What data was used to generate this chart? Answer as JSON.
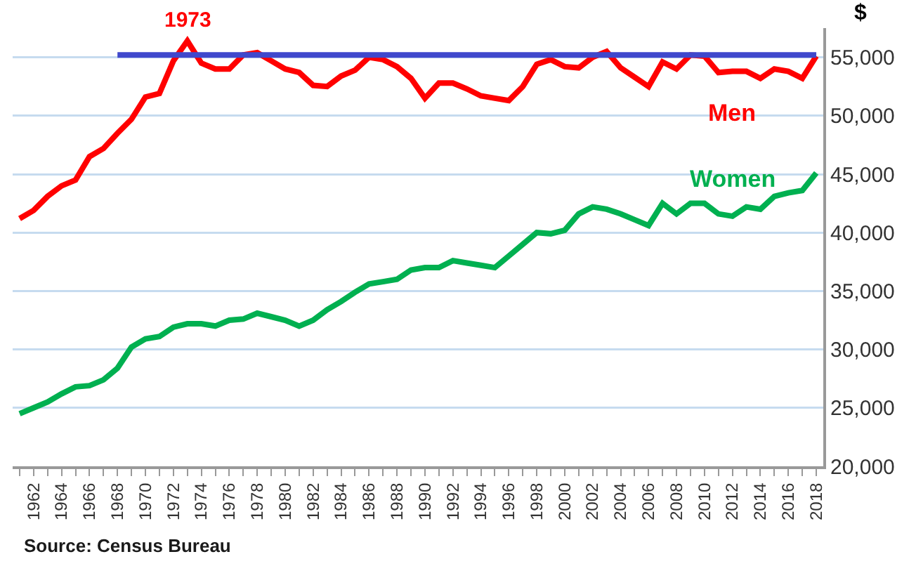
{
  "chart_data": {
    "type": "line",
    "ylabel": "$",
    "x": [
      1961,
      1962,
      1963,
      1964,
      1965,
      1966,
      1967,
      1968,
      1969,
      1970,
      1971,
      1972,
      1973,
      1974,
      1975,
      1976,
      1977,
      1978,
      1979,
      1980,
      1981,
      1982,
      1983,
      1984,
      1985,
      1986,
      1987,
      1988,
      1989,
      1990,
      1991,
      1992,
      1993,
      1994,
      1995,
      1996,
      1997,
      1998,
      1999,
      2000,
      2001,
      2002,
      2003,
      2004,
      2005,
      2006,
      2007,
      2008,
      2009,
      2010,
      2011,
      2012,
      2013,
      2014,
      2015,
      2016,
      2017,
      2018
    ],
    "series": [
      {
        "name": "Men",
        "color": "#ff0000",
        "values": [
          41200,
          41900,
          43100,
          44000,
          44500,
          46500,
          47200,
          48500,
          49700,
          51600,
          51900,
          54700,
          56400,
          54500,
          54000,
          54000,
          55200,
          55400,
          54700,
          54000,
          53700,
          52600,
          52500,
          53400,
          53900,
          55000,
          54800,
          54200,
          53200,
          51500,
          52800,
          52800,
          52300,
          51700,
          51500,
          51300,
          52500,
          54400,
          54800,
          54200,
          54100,
          55000,
          55500,
          54100,
          53300,
          52500,
          54600,
          54000,
          55200,
          55100,
          53700,
          53800,
          53800,
          53200,
          54000,
          53800,
          53200,
          55100
        ]
      },
      {
        "name": "Women",
        "color": "#00b050",
        "values": [
          24500,
          25000,
          25500,
          26200,
          26800,
          26900,
          27400,
          28400,
          30200,
          30900,
          31100,
          31900,
          32200,
          32200,
          32000,
          32500,
          32600,
          33100,
          32800,
          32500,
          32000,
          32500,
          33400,
          34100,
          34900,
          35600,
          35800,
          36000,
          36800,
          37000,
          37000,
          37600,
          37400,
          37200,
          37000,
          38000,
          39000,
          40000,
          39900,
          40200,
          41600,
          42200,
          42000,
          41600,
          41100,
          40600,
          42500,
          41600,
          42500,
          42500,
          41600,
          41400,
          42200,
          42000,
          43100,
          43400,
          43600,
          45100
        ]
      },
      {
        "type": "line",
        "color": "#3f48cc",
        "x": [
          1968,
          2018
        ],
        "values": [
          55200,
          55200
        ]
      }
    ],
    "annotations": [
      {
        "text": "1973",
        "x": 1973,
        "y": 56400
      },
      "Source: Census Bureau"
    ],
    "xlim": [
      1960.5,
      2018.5
    ],
    "xticks": [
      {
        "value": 1961,
        "label": null
      },
      1962,
      {
        "value": 1963,
        "label": null
      },
      1964,
      {
        "value": 1965,
        "label": null
      },
      1966,
      {
        "value": 1967,
        "label": null
      },
      1968,
      {
        "value": 1969,
        "label": null
      },
      1970,
      {
        "value": 1971,
        "label": null
      },
      1972,
      {
        "value": 1973,
        "label": null
      },
      1974,
      {
        "value": 1975,
        "label": null
      },
      1976,
      {
        "value": 1977,
        "label": null
      },
      1978,
      {
        "value": 1979,
        "label": null
      },
      1980,
      {
        "value": 1981,
        "label": null
      },
      1982,
      {
        "value": 1983,
        "label": null
      },
      1984,
      {
        "value": 1985,
        "label": null
      },
      1986,
      {
        "value": 1987,
        "label": null
      },
      1988,
      {
        "value": 1989,
        "label": null
      },
      1990,
      {
        "value": 1991,
        "label": null
      },
      1992,
      {
        "value": 1993,
        "label": null
      },
      1994,
      {
        "value": 1995,
        "label": null
      },
      1996,
      {
        "value": 1997,
        "label": null
      },
      1998,
      {
        "value": 1999,
        "label": null
      },
      2000,
      {
        "value": 2001,
        "label": null
      },
      2002,
      {
        "value": 2003,
        "label": null
      },
      2004,
      {
        "value": 2005,
        "label": null
      },
      2006,
      {
        "value": 2007,
        "label": null
      },
      2008,
      {
        "value": 2009,
        "label": null
      },
      2010,
      {
        "value": 2011,
        "label": null
      },
      2012,
      {
        "value": 2013,
        "label": null
      },
      2014,
      {
        "value": 2015,
        "label": null
      },
      2016,
      {
        "value": 2017,
        "label": null
      },
      2018
    ],
    "ylim": [
      20000,
      57500
    ],
    "yticks": [
      {
        "value": 20000,
        "label": "20,000"
      },
      {
        "value": 25000,
        "label": "25,000"
      },
      {
        "value": 30000,
        "label": "30,000"
      },
      {
        "value": 35000,
        "label": "35,000"
      },
      {
        "value": 40000,
        "label": "40,000"
      },
      {
        "value": 45000,
        "label": "45,000"
      },
      {
        "value": 50000,
        "label": "50,000"
      },
      {
        "value": 55000,
        "label": "55,000"
      }
    ],
    "grid": "y",
    "legend": false,
    "marker": "none",
    "line_style": "solid"
  }
}
